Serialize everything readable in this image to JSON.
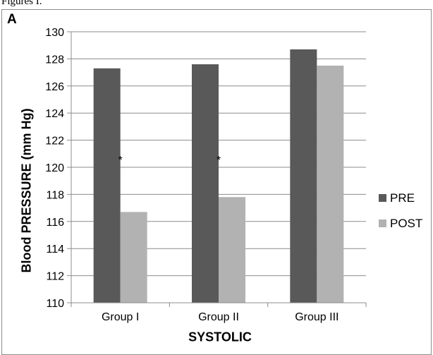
{
  "caption": "Figures I.",
  "chart_data": {
    "type": "bar",
    "panel_label": "A",
    "categories": [
      "Group I",
      "Group II",
      "Group III"
    ],
    "series": [
      {
        "name": "PRE",
        "values": [
          127.3,
          127.6,
          128.7
        ],
        "color": "#595959"
      },
      {
        "name": "POST",
        "values": [
          116.7,
          117.8,
          127.5
        ],
        "color": "#b2b2b2"
      }
    ],
    "annotations": [
      {
        "category": "Group I",
        "text": "*"
      },
      {
        "category": "Group II",
        "text": "*"
      }
    ],
    "xlabel": "SYSTOLIC",
    "ylabel": "Blood PRESSURE (mm Hg)",
    "ylim": [
      110,
      130
    ],
    "ytick_step": 2,
    "grid": true,
    "legend_position": "right"
  }
}
